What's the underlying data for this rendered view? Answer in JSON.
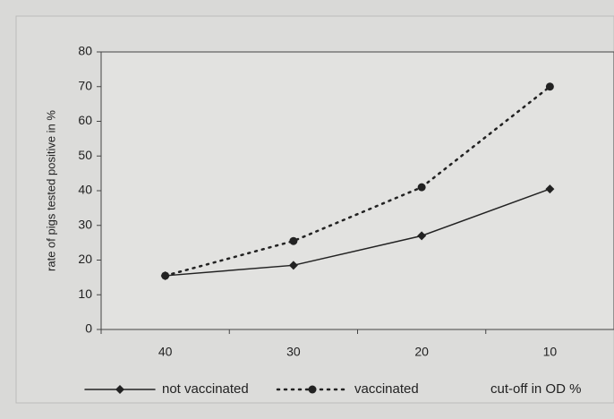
{
  "chart_data": {
    "type": "line",
    "categories": [
      "40",
      "30",
      "20",
      "10"
    ],
    "series": [
      {
        "name": "not vaccinated",
        "color": "#222222",
        "values": [
          15.5,
          18.5,
          27,
          40.5
        ]
      },
      {
        "name": "vaccinated",
        "color": "#222222",
        "values": [
          15.5,
          25.5,
          41,
          70
        ]
      }
    ],
    "y_label": "rate of pigs tested positive in %",
    "x_label": "cut-off in OD %",
    "ylim": [
      0,
      80
    ],
    "yticks": [
      0,
      10,
      20,
      30,
      40,
      50,
      60,
      70,
      80
    ],
    "legend": "bottom"
  }
}
